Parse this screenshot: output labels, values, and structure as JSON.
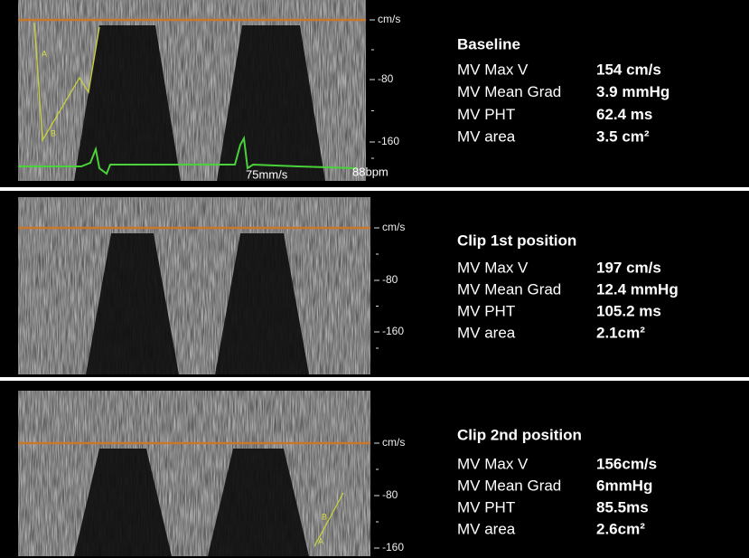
{
  "panels": [
    {
      "title": "Baseline",
      "axis": {
        "unit": "cm/s",
        "ticks": [
          "-80",
          "-160"
        ]
      },
      "rows": [
        {
          "label": "MV Max V",
          "value": "154 cm/s"
        },
        {
          "label": "MV Mean Grad",
          "value": "3.9 mmHg"
        },
        {
          "label": "MV PHT",
          "value": "62.4 ms"
        },
        {
          "label": "MV area",
          "value": "3.5 cm²"
        }
      ],
      "annotations": {
        "markers": [
          "A",
          "B"
        ],
        "sweep": "75mm/s",
        "heart_rate": "88bpm"
      }
    },
    {
      "title": "Clip 1st position",
      "axis": {
        "unit": "cm/s",
        "ticks": [
          "-80",
          "-160"
        ]
      },
      "rows": [
        {
          "label": "MV Max V",
          "value": "197 cm/s"
        },
        {
          "label": "MV Mean Grad",
          "value": "12.4 mmHg"
        },
        {
          "label": "MV PHT",
          "value": "105.2 ms"
        },
        {
          "label": "MV area",
          "value": "2.1cm²"
        }
      ]
    },
    {
      "title": "Clip 2nd position",
      "axis": {
        "unit": "cm/s",
        "ticks": [
          "-80",
          "-160"
        ]
      },
      "rows": [
        {
          "label": "MV Max V",
          "value": "156cm/s"
        },
        {
          "label": "MV Mean Grad",
          "value": "6mmHg"
        },
        {
          "label": "MV PHT",
          "value": "85.5ms"
        },
        {
          "label": "MV area",
          "value": "2.6cm²"
        }
      ],
      "annotations": {
        "markers": [
          "A",
          "B"
        ]
      }
    }
  ]
}
